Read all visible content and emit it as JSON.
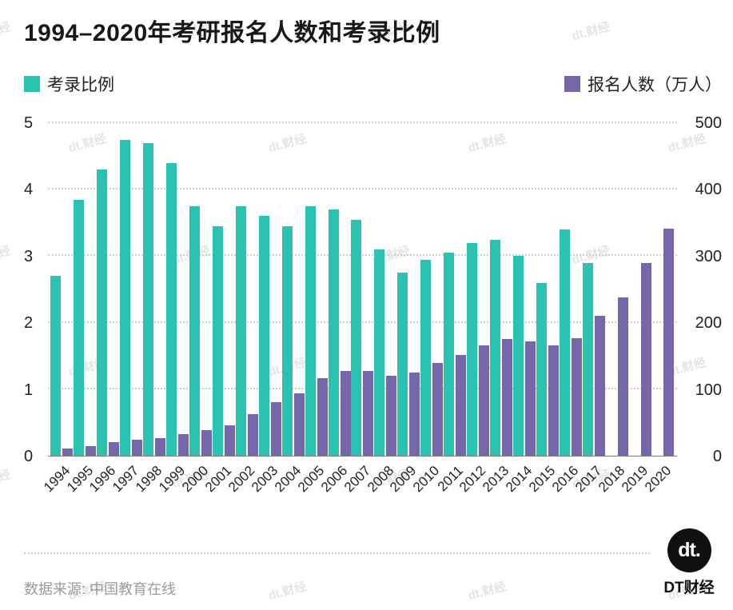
{
  "title": "1994–2020年考研报名人数和考录比例",
  "watermark": "dt.财经",
  "legend": {
    "left": {
      "label": "考录比例",
      "color": "#2ac2b0"
    },
    "right": {
      "label": "报名人数（万人）",
      "color": "#7667ab"
    }
  },
  "footer": {
    "source": "数据来源: 中国教育在线",
    "logo_text": "dt.",
    "brand": "DT财经"
  },
  "chart_data": {
    "type": "bar",
    "title": "1994–2020年考研报名人数和考录比例",
    "categories": [
      "1994",
      "1995",
      "1996",
      "1997",
      "1998",
      "1999",
      "2000",
      "2001",
      "2002",
      "2003",
      "2004",
      "2005",
      "2006",
      "2007",
      "2008",
      "2009",
      "2010",
      "2011",
      "2012",
      "2013",
      "2014",
      "2015",
      "2016",
      "2017",
      "2018",
      "2019",
      "2020"
    ],
    "series": [
      {
        "name": "考录比例",
        "axis": "left",
        "color": "#2ac2b0",
        "values": [
          2.7,
          3.85,
          4.3,
          4.75,
          4.7,
          4.4,
          3.75,
          3.45,
          3.75,
          3.6,
          3.45,
          3.75,
          3.7,
          3.55,
          3.1,
          2.75,
          2.95,
          3.05,
          3.2,
          3.25,
          3.0,
          2.6,
          3.4,
          2.9,
          null,
          null,
          null
        ]
      },
      {
        "name": "报名人数（万人）",
        "axis": "right",
        "color": "#7667ab",
        "values": [
          11,
          15,
          20,
          24,
          27,
          32,
          39,
          46,
          63,
          80,
          94,
          117,
          128,
          128,
          120,
          125,
          140,
          152,
          166,
          176,
          172,
          166,
          177,
          210,
          238,
          290,
          341
        ]
      }
    ],
    "left_axis": {
      "ticks": [
        0,
        1,
        2,
        3,
        4,
        5
      ],
      "max": 5,
      "lim": [
        0,
        5
      ]
    },
    "right_axis": {
      "ticks": [
        0,
        100,
        200,
        300,
        400,
        500
      ],
      "max": 500,
      "lim": [
        0,
        500
      ]
    },
    "grid": "dotted horizontal",
    "legend_position": "top"
  }
}
